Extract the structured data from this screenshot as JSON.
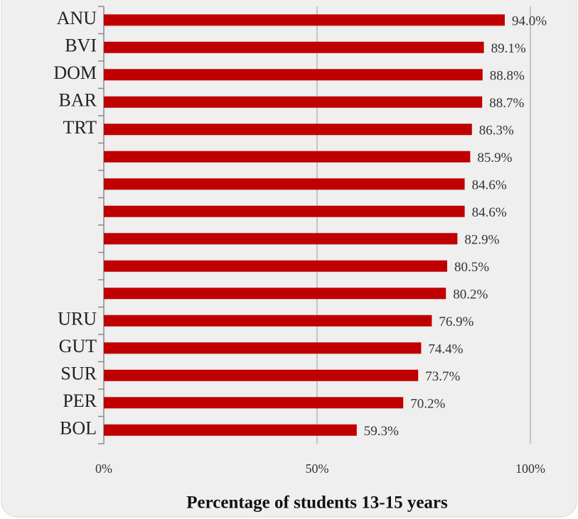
{
  "chart_data": {
    "type": "bar",
    "orientation": "horizontal",
    "x_label": "Percentage of students 13-15 years",
    "categories": [
      "ANU",
      "BVI",
      "DOM",
      "BAR",
      "TRT",
      null,
      null,
      null,
      null,
      null,
      null,
      "URU",
      "GUT",
      "SUR",
      "PER",
      "BOL"
    ],
    "values": [
      94.0,
      89.1,
      88.8,
      88.7,
      86.3,
      85.9,
      84.6,
      84.6,
      82.9,
      80.5,
      80.2,
      76.9,
      74.4,
      73.7,
      70.2,
      59.3
    ],
    "value_labels": [
      "94.0%",
      "89.1%",
      "88.8%",
      "88.7%",
      "86.3%",
      "85.9%",
      "84.6%",
      "84.6%",
      "82.9%",
      "80.5%",
      "80.2%",
      "76.9%",
      "74.4%",
      "73.7%",
      "70.2%",
      "59.3%"
    ],
    "color": "#c00000",
    "xlim": [
      0,
      100
    ],
    "xticks": [
      {
        "value": 0,
        "label": "0%"
      },
      {
        "value": 50,
        "label": "50%"
      },
      {
        "value": 100,
        "label": "100%"
      }
    ],
    "grid": true
  }
}
